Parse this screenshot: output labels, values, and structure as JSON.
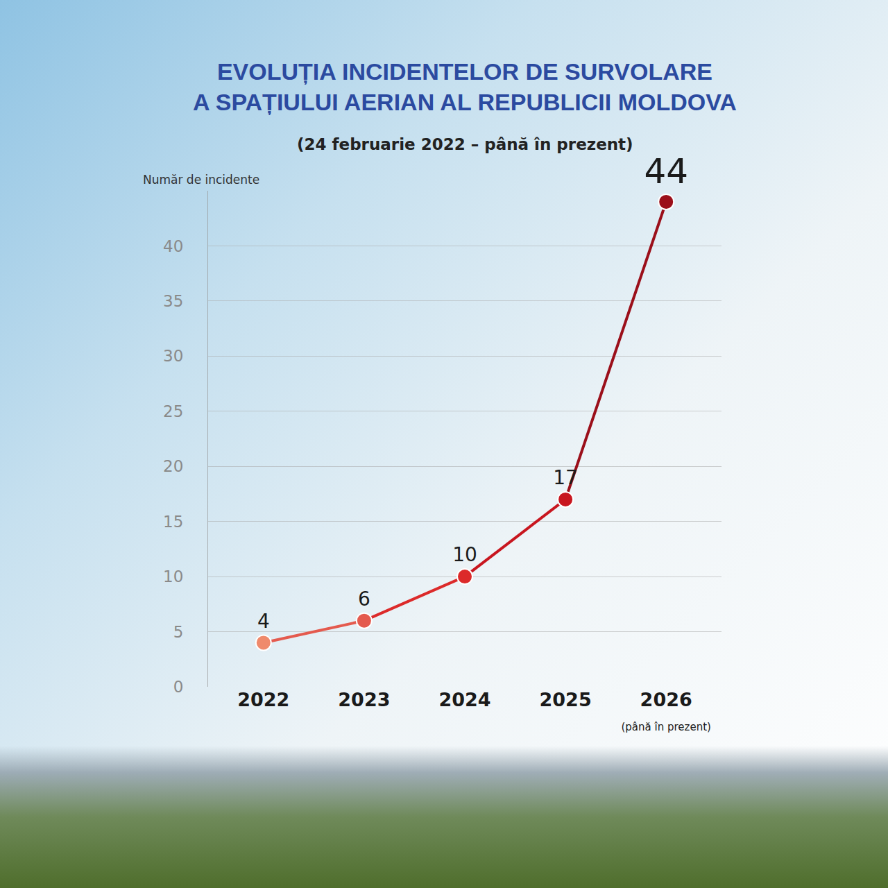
{
  "chart_data": {
    "type": "line",
    "title": [
      "EVOLUȚIA INCIDENTELOR DE SURVOLARE",
      "A SPAȚIULUI AERIAN AL REPUBLICII MOLDOVA"
    ],
    "subtitle": "(24 februarie 2022 – până în prezent)",
    "y_label": "Număr de incidente",
    "categories": [
      "2022",
      "2023",
      "2024",
      "2025",
      "2026 (până în prezent)"
    ],
    "values": [
      4,
      6,
      10,
      17,
      44
    ],
    "colors": [
      "#ef8a6c",
      "#e45a4e",
      "#dc2a2a",
      "#c8161f",
      "#9b0f1a"
    ],
    "ylim": [
      0,
      45
    ],
    "yticks": [
      0,
      5,
      10,
      15,
      20,
      25,
      30,
      35,
      40
    ],
    "grid": true,
    "data_labels": true,
    "marker": "circle"
  }
}
